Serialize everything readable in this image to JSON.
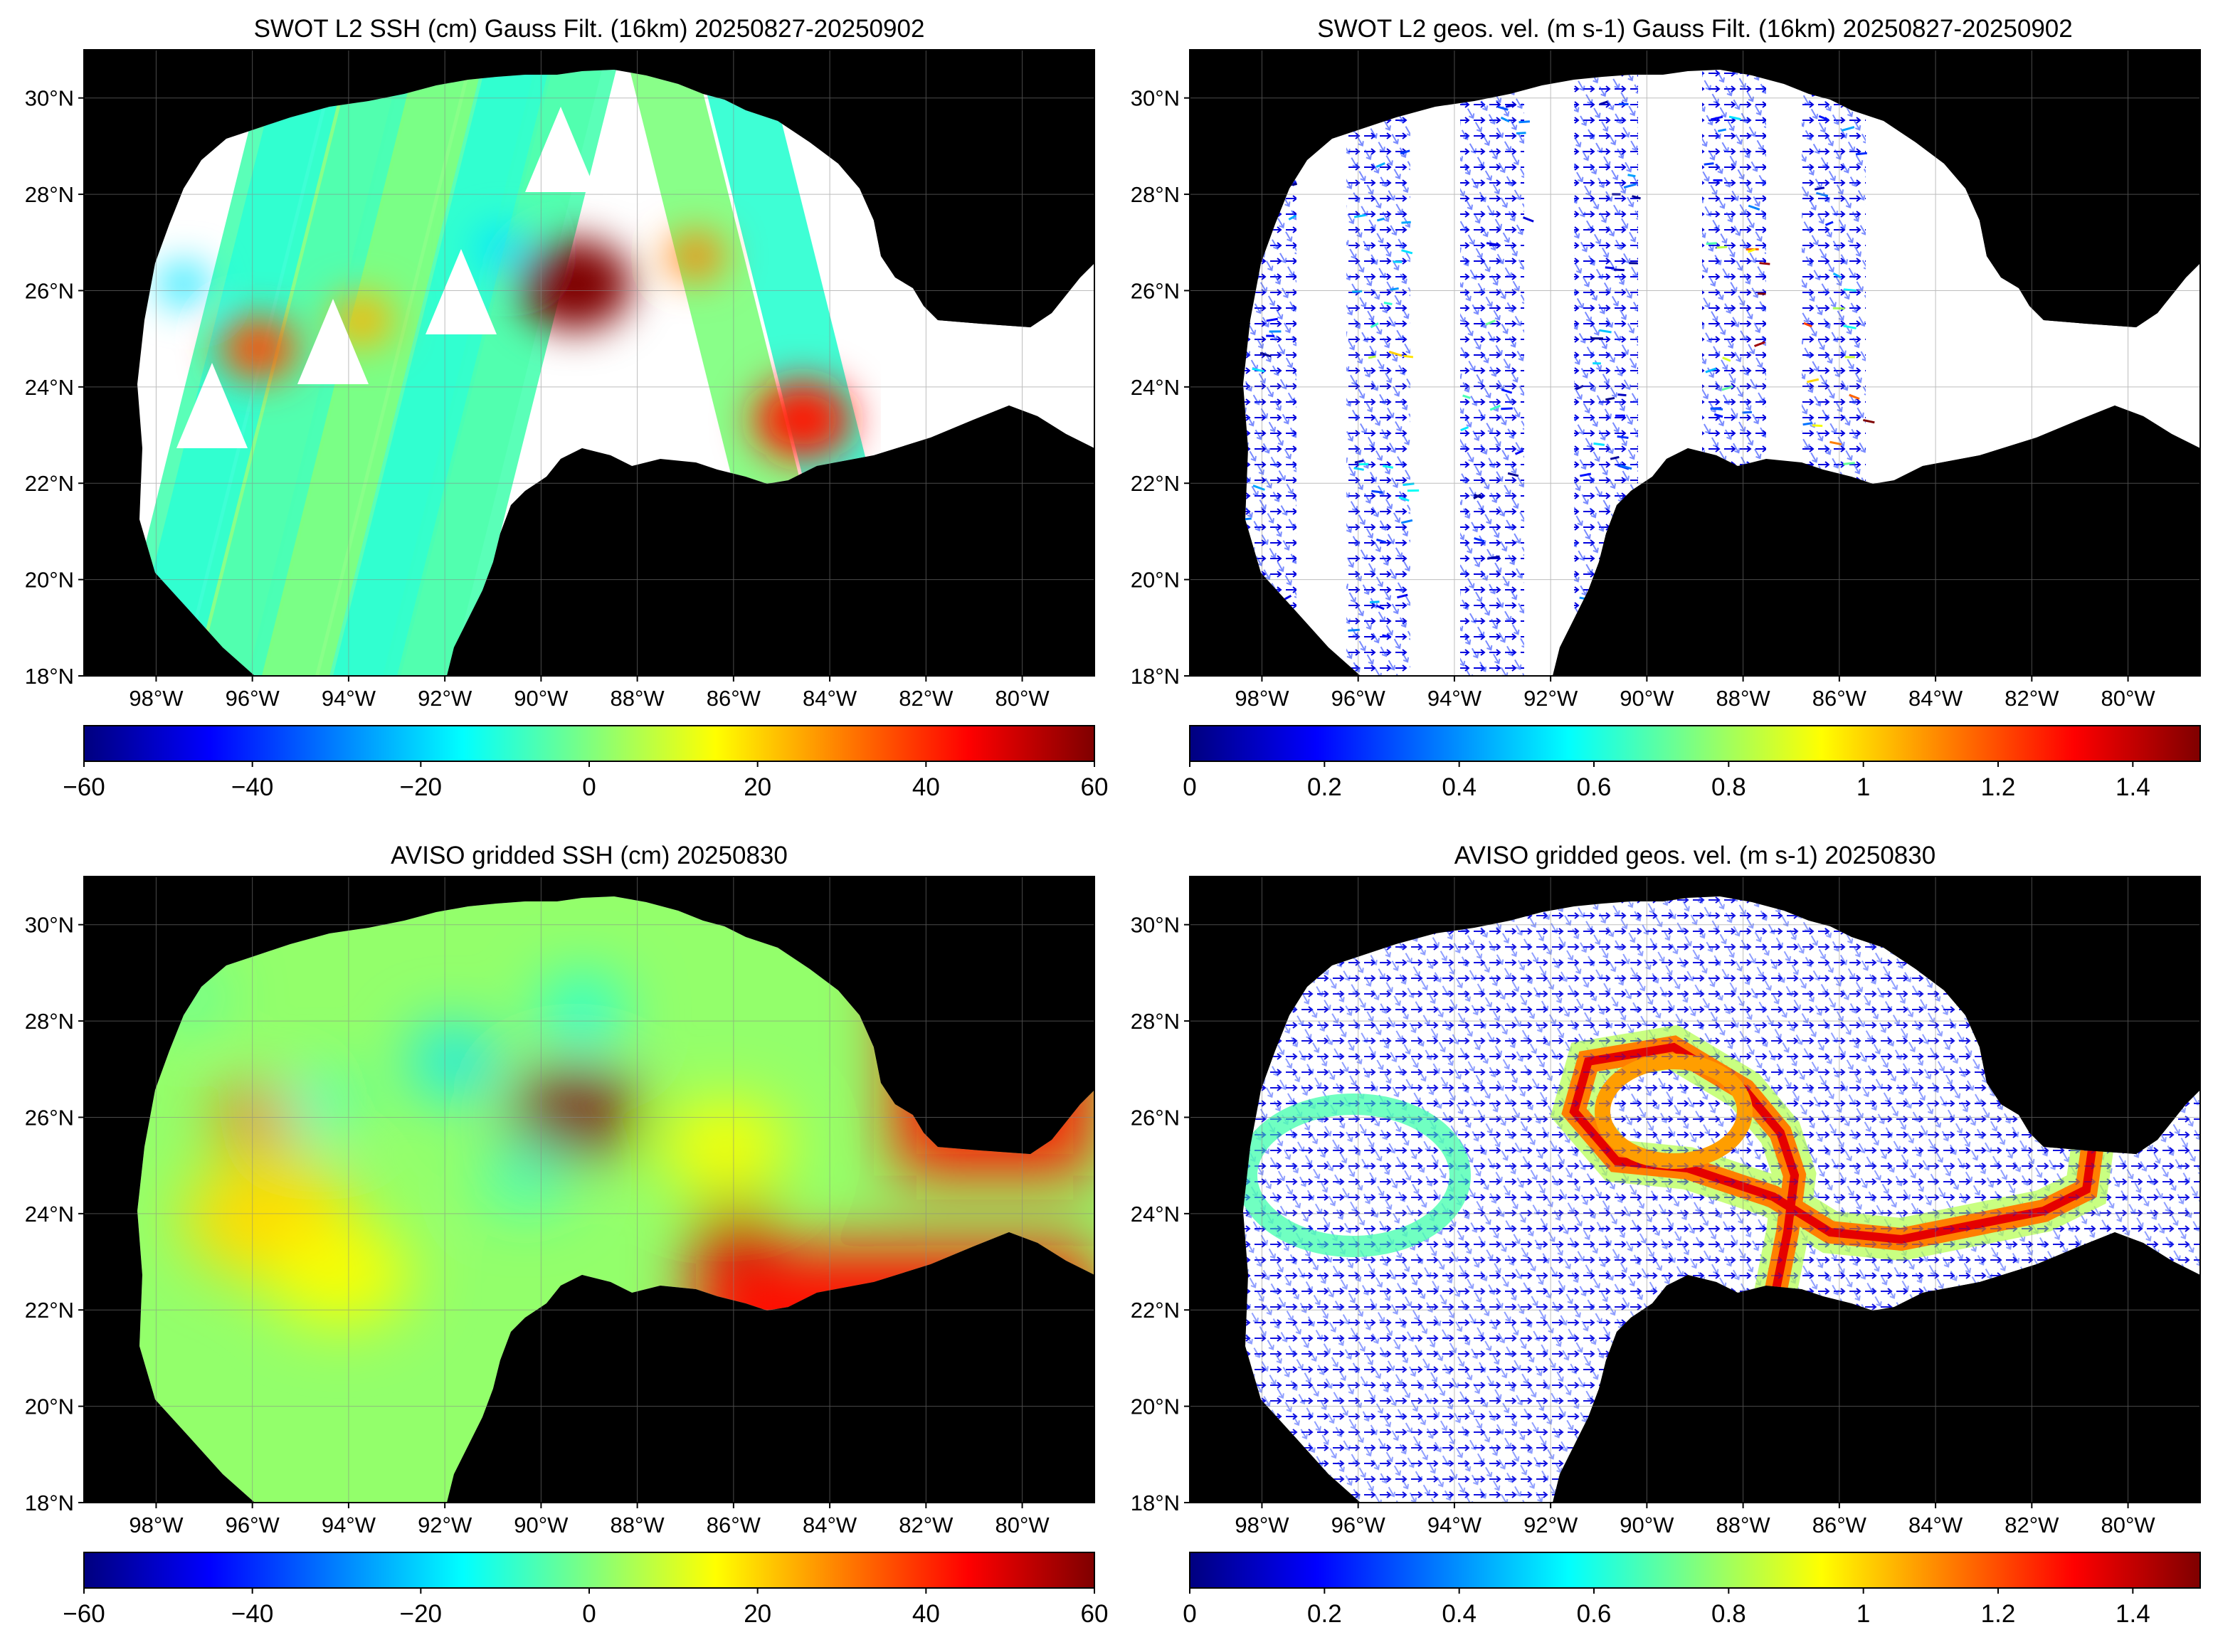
{
  "colormap": [
    "#00007f",
    "#0000ff",
    "#007fff",
    "#00ffff",
    "#7fff7f",
    "#ffff00",
    "#ff7f00",
    "#ff0000",
    "#7f0000"
  ],
  "land_color": "#000000",
  "ocean_missing_color": "#ffffff",
  "map_extent": {
    "lon_min": -99.5,
    "lon_max": -78.5,
    "lat_min": 18,
    "lat_max": 31
  },
  "lat_ticks": [
    {
      "value": 30,
      "label": "30°N"
    },
    {
      "value": 28,
      "label": "28°N"
    },
    {
      "value": 26,
      "label": "26°N"
    },
    {
      "value": 24,
      "label": "24°N"
    },
    {
      "value": 22,
      "label": "22°N"
    },
    {
      "value": 20,
      "label": "20°N"
    },
    {
      "value": 18,
      "label": "18°N"
    }
  ],
  "lon_ticks": [
    {
      "value": -98,
      "label": "98°W"
    },
    {
      "value": -96,
      "label": "96°W"
    },
    {
      "value": -94,
      "label": "94°W"
    },
    {
      "value": -92,
      "label": "92°W"
    },
    {
      "value": -90,
      "label": "90°W"
    },
    {
      "value": -88,
      "label": "88°W"
    },
    {
      "value": -86,
      "label": "86°W"
    },
    {
      "value": -84,
      "label": "84°W"
    },
    {
      "value": -82,
      "label": "82°W"
    },
    {
      "value": -80,
      "label": "80°W"
    }
  ],
  "panels": [
    {
      "id": "swot-ssh",
      "title": "SWOT L2 SSH (cm) Gauss Filt. (16km) 20250827-20250902",
      "kind": "swath-ssh",
      "colorbar": {
        "min": -60,
        "max": 60,
        "ticks": [
          {
            "value": -60,
            "label": "−60"
          },
          {
            "value": -40,
            "label": "−40"
          },
          {
            "value": -20,
            "label": "−20"
          },
          {
            "value": 0,
            "label": "0"
          },
          {
            "value": 20,
            "label": "20"
          },
          {
            "value": 40,
            "label": "40"
          },
          {
            "value": 60,
            "label": "60"
          }
        ]
      }
    },
    {
      "id": "swot-vel",
      "title": "SWOT L2 geos. vel. (m s-1) Gauss Filt. (16km) 20250827-20250902",
      "kind": "swath-vel",
      "colorbar": {
        "min": 0,
        "max": 1.5,
        "ticks": [
          {
            "value": 0,
            "label": "0"
          },
          {
            "value": 0.2,
            "label": "0.2"
          },
          {
            "value": 0.4,
            "label": "0.4"
          },
          {
            "value": 0.6,
            "label": "0.6"
          },
          {
            "value": 0.8,
            "label": "0.8"
          },
          {
            "value": 1,
            "label": "1"
          },
          {
            "value": 1.2,
            "label": "1.2"
          },
          {
            "value": 1.4,
            "label": "1.4"
          }
        ]
      }
    },
    {
      "id": "aviso-ssh",
      "title": "AVISO gridded SSH (cm) 20250830",
      "kind": "grid-ssh",
      "colorbar": {
        "min": -60,
        "max": 60,
        "ticks": [
          {
            "value": -60,
            "label": "−60"
          },
          {
            "value": -40,
            "label": "−40"
          },
          {
            "value": -20,
            "label": "−20"
          },
          {
            "value": 0,
            "label": "0"
          },
          {
            "value": 20,
            "label": "20"
          },
          {
            "value": 40,
            "label": "40"
          },
          {
            "value": 60,
            "label": "60"
          }
        ]
      }
    },
    {
      "id": "aviso-vel",
      "title": "AVISO gridded geos. vel. (m s-1)  20250830",
      "kind": "grid-vel",
      "colorbar": {
        "min": 0,
        "max": 1.5,
        "ticks": [
          {
            "value": 0,
            "label": "0"
          },
          {
            "value": 0.2,
            "label": "0.2"
          },
          {
            "value": 0.4,
            "label": "0.4"
          },
          {
            "value": 0.6,
            "label": "0.6"
          },
          {
            "value": 0.8,
            "label": "0.8"
          },
          {
            "value": 1,
            "label": "1"
          },
          {
            "value": 1.2,
            "label": "1.2"
          },
          {
            "value": 1.4,
            "label": "1.4"
          }
        ]
      }
    }
  ],
  "ssh_features": [
    {
      "name": "loop-current-eddy",
      "lon": -87.6,
      "lat": 25.7,
      "value": 60
    },
    {
      "name": "yucatan-high",
      "lon": -85.0,
      "lat": 23.1,
      "value": 48
    },
    {
      "name": "western-high",
      "lon": -94.8,
      "lat": 24.3,
      "value": 38
    }
  ]
}
